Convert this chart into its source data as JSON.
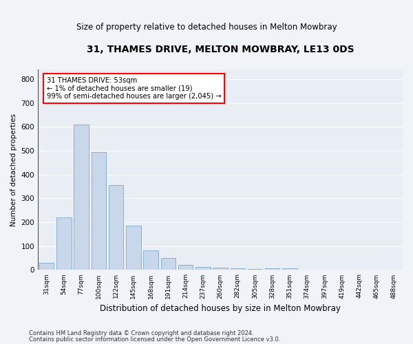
{
  "title": "31, THAMES DRIVE, MELTON MOWBRAY, LE13 0DS",
  "subtitle": "Size of property relative to detached houses in Melton Mowbray",
  "xlabel": "Distribution of detached houses by size in Melton Mowbray",
  "ylabel": "Number of detached properties",
  "bar_color": "#c8d8ea",
  "bar_edge_color": "#7aaac8",
  "background_color": "#e8eef4",
  "annotation_text": "31 THAMES DRIVE: 53sqm\n← 1% of detached houses are smaller (19)\n99% of semi-detached houses are larger (2,045) →",
  "categories": [
    "31sqm",
    "54sqm",
    "77sqm",
    "100sqm",
    "122sqm",
    "145sqm",
    "168sqm",
    "191sqm",
    "214sqm",
    "237sqm",
    "260sqm",
    "282sqm",
    "305sqm",
    "328sqm",
    "351sqm",
    "374sqm",
    "397sqm",
    "419sqm",
    "442sqm",
    "465sqm",
    "488sqm"
  ],
  "values": [
    30,
    220,
    610,
    495,
    355,
    185,
    82,
    50,
    22,
    14,
    10,
    7,
    5,
    8,
    8,
    0,
    0,
    0,
    0,
    0,
    0
  ],
  "ylim": [
    0,
    840
  ],
  "yticks": [
    0,
    100,
    200,
    300,
    400,
    500,
    600,
    700,
    800
  ],
  "footer_line1": "Contains HM Land Registry data © Crown copyright and database right 2024.",
  "footer_line2": "Contains public sector information licensed under the Open Government Licence v3.0.",
  "grid_color": "#ffffff",
  "fig_width": 6.0,
  "fig_height": 5.0,
  "dpi": 100
}
